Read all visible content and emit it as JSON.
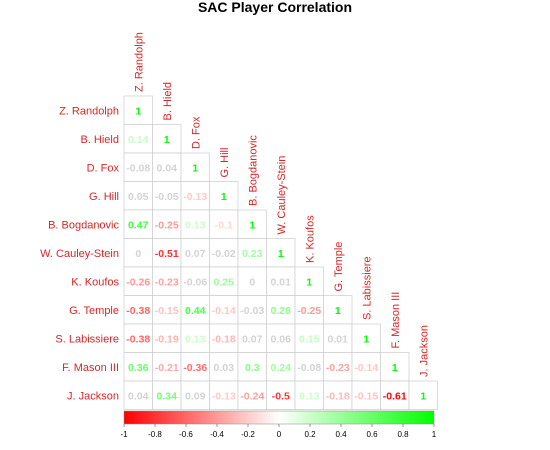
{
  "chart_data": {
    "type": "heatmap",
    "title": "SAC Player Correlation",
    "players": [
      "Z. Randolph",
      "B. Hield",
      "D. Fox",
      "G. Hill",
      "B. Bogdanovic",
      "W. Cauley-Stein",
      "K. Koufos",
      "G. Temple",
      "S. Labissiere",
      "F. Mason III",
      "J. Jackson"
    ],
    "matrix_lower": [
      [
        1
      ],
      [
        0.14,
        1
      ],
      [
        -0.08,
        0.04,
        1
      ],
      [
        0.05,
        -0.05,
        -0.13,
        1
      ],
      [
        0.47,
        -0.25,
        0.13,
        -0.1,
        1
      ],
      [
        0,
        -0.51,
        0.07,
        -0.02,
        0.23,
        1
      ],
      [
        -0.26,
        -0.23,
        -0.06,
        0.25,
        0,
        0.01,
        1
      ],
      [
        -0.38,
        -0.15,
        0.44,
        -0.14,
        -0.03,
        0.28,
        -0.25,
        1
      ],
      [
        -0.38,
        -0.19,
        0.13,
        -0.18,
        0.07,
        0.06,
        0.15,
        0.01,
        1
      ],
      [
        0.36,
        -0.21,
        -0.36,
        0.03,
        0.3,
        0.24,
        -0.08,
        -0.23,
        -0.14,
        1
      ],
      [
        0.04,
        0.34,
        0.09,
        -0.13,
        -0.24,
        -0.5,
        0.13,
        -0.18,
        -0.15,
        -0.61,
        1
      ]
    ],
    "colorbar": {
      "range": [
        -1,
        1
      ],
      "ticks": [
        "-1",
        "-0.8",
        "-0.6",
        "-0.4",
        "-0.2",
        "0",
        "0.2",
        "0.4",
        "0.6",
        "0.8",
        "1"
      ],
      "low_color": "#ff0000",
      "mid_color": "#ffffff",
      "high_color": "#00ff00"
    }
  }
}
